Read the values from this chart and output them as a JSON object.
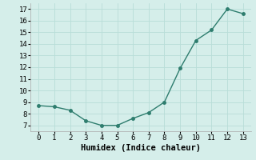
{
  "x": [
    0,
    1,
    2,
    3,
    4,
    5,
    6,
    7,
    8,
    9,
    10,
    11,
    12,
    13
  ],
  "y": [
    8.7,
    8.6,
    8.3,
    7.4,
    7.0,
    7.0,
    7.6,
    8.1,
    9.0,
    11.9,
    14.3,
    15.2,
    17.0,
    16.6
  ],
  "line_color": "#2e7d6e",
  "marker": "o",
  "marker_size": 2.5,
  "line_width": 1.0,
  "xlabel": "Humidex (Indice chaleur)",
  "xlim": [
    -0.5,
    13.5
  ],
  "ylim": [
    6.5,
    17.5
  ],
  "yticks": [
    7,
    8,
    9,
    10,
    11,
    12,
    13,
    14,
    15,
    16,
    17
  ],
  "xticks": [
    0,
    1,
    2,
    3,
    4,
    5,
    6,
    7,
    8,
    9,
    10,
    11,
    12,
    13
  ],
  "bg_color": "#d5eeea",
  "grid_color": "#b8ddd8",
  "xlabel_fontsize": 7.5,
  "tick_fontsize": 6.5
}
